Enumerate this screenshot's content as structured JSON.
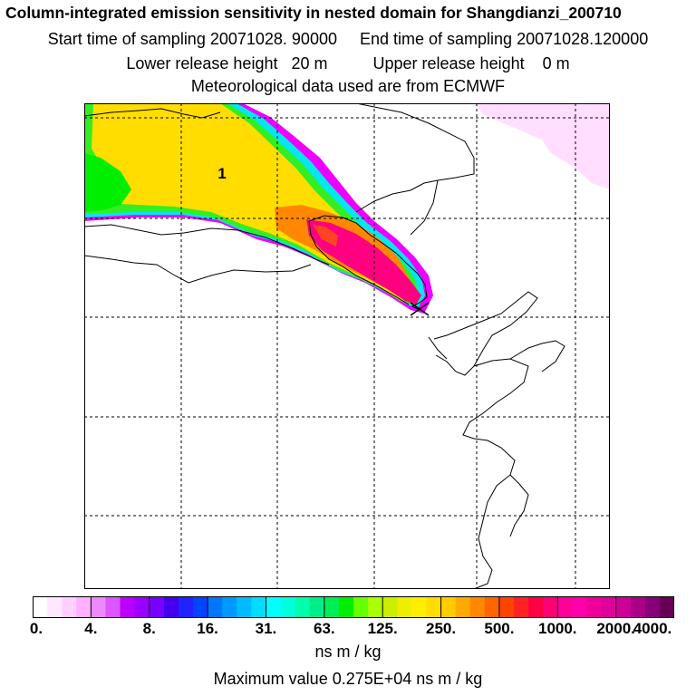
{
  "header": {
    "title": "Column-integrated emission sensitivity in nested domain for Shangdianzi_200710",
    "sampling_line": "Start time of sampling 20071028. 90000     End time of sampling 20071028.120000",
    "release_line": "Lower release height   20 m          Upper release height    0 m",
    "met_line": "Meteorological data used are from ECMWF"
  },
  "map": {
    "label": "1",
    "colors": {
      "plume_green": "#00ee00",
      "plume_yellow": "#ffdd00",
      "plume_orange": "#ff7700",
      "plume_pink": "#ff0080",
      "plume_cyan": "#00ffee",
      "plume_magenta": "#ee00ff",
      "faint_pink": "#ffd8ff",
      "marker": "#000000"
    }
  },
  "colorbar": {
    "labels": [
      "0.",
      "4.",
      "8.",
      "16.",
      "31.",
      "63.",
      "125.",
      "250.",
      "500.",
      "1000.",
      "2000.",
      "4000."
    ],
    "colors": [
      "#ffffff",
      "#ffe8ff",
      "#ffd0ff",
      "#ffb0ff",
      "#ee88ff",
      "#dd55ff",
      "#bb00ff",
      "#9900ff",
      "#7700ff",
      "#4400ee",
      "#2222ff",
      "#0044ff",
      "#0077ff",
      "#0099ff",
      "#00bbff",
      "#00ddff",
      "#00ffff",
      "#00ffdd",
      "#00ffaa",
      "#00ee88",
      "#00ee55",
      "#00ee00",
      "#66ff00",
      "#aaff00",
      "#ccee00",
      "#eeee00",
      "#ffee00",
      "#ffdd00",
      "#ffcc00",
      "#ffaa00",
      "#ff8800",
      "#ff6600",
      "#ff4400",
      "#ff2222",
      "#ff0044",
      "#ff0077",
      "#ff0099",
      "#ff00aa",
      "#ee0099",
      "#dd0099",
      "#cc0099",
      "#aa0088",
      "#880077",
      "#660055"
    ],
    "units": "ns m / kg",
    "max_value": "Maximum value  0.275E+04 ns m / kg"
  }
}
